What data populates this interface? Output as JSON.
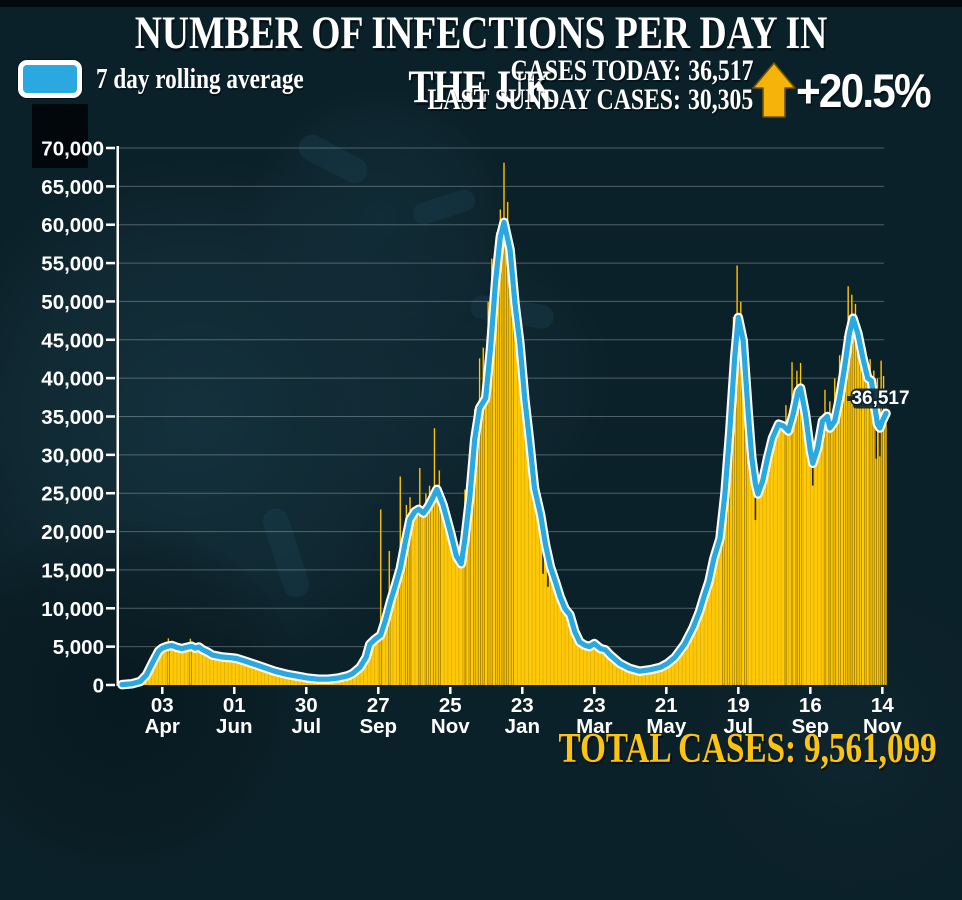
{
  "header": {
    "title": "NUMBER OF INFECTIONS PER DAY IN THE UK",
    "legend_label": "7 day rolling average",
    "stats": [
      {
        "label": "CASES TODAY:",
        "value": "36,517"
      },
      {
        "label": "LAST SUNDAY CASES:",
        "value": "30,305"
      }
    ],
    "change_badge": {
      "direction": "up",
      "value": "+20.5%",
      "arrow_icon": "up-arrow-icon"
    }
  },
  "footer": {
    "total_label": "TOTAL CASES:",
    "total_value": "9,561,099"
  },
  "colors": {
    "background": "#0b2129",
    "bar_yellow": "#ffc908",
    "line_blue": "#2aa9e0",
    "line_outline": "#ffffff",
    "gold_text": "#fcc40e",
    "axis_white": "#ffffff",
    "annotation_bg": "#0c232e"
  },
  "chart_data": {
    "type": "bar+line",
    "title": "NUMBER OF INFECTIONS PER DAY IN THE UK",
    "legend": "7 day rolling average",
    "grid": true,
    "ylim": [
      0,
      70000
    ],
    "y_axis": {
      "min": 0,
      "max": 70000,
      "step": 5000,
      "tick_labels": [
        "0",
        "5,000",
        "10,000",
        "15,000",
        "20,000",
        "25,000",
        "30,000",
        "35,000",
        "40,000",
        "45,000",
        "50,000",
        "55,000",
        "60,000",
        "65,000",
        "70,000"
      ]
    },
    "x_axis": {
      "unit": "day index (0 = start of series, ~1 Mar 2020)",
      "domain": [
        0,
        626
      ],
      "tick_days": [
        33,
        92,
        151,
        210,
        269,
        328,
        387,
        446,
        505,
        564,
        623
      ],
      "tick_labels": [
        [
          "03",
          "Apr"
        ],
        [
          "01",
          "Jun"
        ],
        [
          "30",
          "Jul"
        ],
        [
          "27",
          "Sep"
        ],
        [
          "25",
          "Nov"
        ],
        [
          "23",
          "Jan"
        ],
        [
          "23",
          "Mar"
        ],
        [
          "21",
          "May"
        ],
        [
          "19",
          "Jul"
        ],
        [
          "16",
          "Sep"
        ],
        [
          "14",
          "Nov"
        ]
      ]
    },
    "series": [
      {
        "name": "7 day rolling average",
        "type": "line",
        "color": "#2aa9e0",
        "points": [
          [
            0,
            50
          ],
          [
            8,
            150
          ],
          [
            15,
            450
          ],
          [
            20,
            1300
          ],
          [
            25,
            2900
          ],
          [
            30,
            4400
          ],
          [
            33,
            4800
          ],
          [
            37,
            5050
          ],
          [
            41,
            5150
          ],
          [
            45,
            4900
          ],
          [
            49,
            4750
          ],
          [
            53,
            4900
          ],
          [
            57,
            5050
          ],
          [
            60,
            4800
          ],
          [
            63,
            4950
          ],
          [
            66,
            4600
          ],
          [
            70,
            4300
          ],
          [
            74,
            3900
          ],
          [
            82,
            3650
          ],
          [
            90,
            3550
          ],
          [
            94,
            3450
          ],
          [
            103,
            3000
          ],
          [
            115,
            2350
          ],
          [
            125,
            1800
          ],
          [
            136,
            1350
          ],
          [
            147,
            1050
          ],
          [
            152,
            900
          ],
          [
            161,
            750
          ],
          [
            169,
            750
          ],
          [
            177,
            900
          ],
          [
            185,
            1200
          ],
          [
            189,
            1500
          ],
          [
            195,
            2300
          ],
          [
            200,
            3600
          ],
          [
            203,
            5300
          ],
          [
            207,
            5900
          ],
          [
            212,
            6500
          ],
          [
            216,
            8500
          ],
          [
            220,
            10900
          ],
          [
            224,
            13000
          ],
          [
            228,
            15200
          ],
          [
            232,
            18500
          ],
          [
            236,
            21600
          ],
          [
            240,
            22600
          ],
          [
            243,
            22900
          ],
          [
            247,
            22400
          ],
          [
            251,
            23300
          ],
          [
            254,
            24200
          ],
          [
            258,
            25500
          ],
          [
            263,
            23500
          ],
          [
            269,
            20000
          ],
          [
            274,
            16800
          ],
          [
            278,
            15800
          ],
          [
            281,
            19000
          ],
          [
            285,
            24500
          ],
          [
            289,
            32000
          ],
          [
            293,
            36100
          ],
          [
            298,
            37400
          ],
          [
            302,
            44000
          ],
          [
            306,
            52500
          ],
          [
            310,
            58400
          ],
          [
            313,
            60300
          ],
          [
            318,
            56700
          ],
          [
            322,
            49700
          ],
          [
            326,
            44500
          ],
          [
            330,
            37400
          ],
          [
            334,
            31800
          ],
          [
            338,
            25650
          ],
          [
            343,
            22200
          ],
          [
            347,
            18300
          ],
          [
            351,
            15400
          ],
          [
            355,
            13500
          ],
          [
            359,
            11500
          ],
          [
            363,
            9950
          ],
          [
            367,
            9150
          ],
          [
            371,
            6950
          ],
          [
            375,
            5600
          ],
          [
            379,
            5200
          ],
          [
            383,
            5000
          ],
          [
            387,
            5400
          ],
          [
            392,
            4750
          ],
          [
            396,
            4580
          ],
          [
            400,
            3900
          ],
          [
            408,
            2800
          ],
          [
            416,
            2150
          ],
          [
            424,
            1800
          ],
          [
            433,
            2000
          ],
          [
            441,
            2300
          ],
          [
            447,
            2800
          ],
          [
            453,
            3600
          ],
          [
            461,
            5300
          ],
          [
            468,
            7500
          ],
          [
            473,
            9500
          ],
          [
            477,
            11600
          ],
          [
            481,
            13500
          ],
          [
            485,
            16500
          ],
          [
            490,
            19100
          ],
          [
            494,
            24900
          ],
          [
            498,
            33100
          ],
          [
            502,
            42700
          ],
          [
            505,
            47900
          ],
          [
            509,
            44900
          ],
          [
            513,
            35700
          ],
          [
            516,
            29600
          ],
          [
            519,
            26200
          ],
          [
            521,
            24900
          ],
          [
            525,
            26600
          ],
          [
            529,
            29600
          ],
          [
            533,
            32200
          ],
          [
            538,
            34000
          ],
          [
            542,
            33750
          ],
          [
            546,
            33100
          ],
          [
            550,
            35300
          ],
          [
            554,
            38300
          ],
          [
            556,
            38700
          ],
          [
            560,
            35300
          ],
          [
            564,
            30500
          ],
          [
            566,
            28900
          ],
          [
            570,
            30900
          ],
          [
            574,
            34400
          ],
          [
            578,
            35000
          ],
          [
            580,
            33500
          ],
          [
            584,
            34400
          ],
          [
            588,
            37400
          ],
          [
            592,
            41350
          ],
          [
            596,
            45800
          ],
          [
            599,
            47800
          ],
          [
            603,
            45800
          ],
          [
            607,
            42650
          ],
          [
            611,
            40000
          ],
          [
            614,
            39650
          ],
          [
            617,
            36100
          ],
          [
            619,
            34000
          ],
          [
            621,
            33500
          ],
          [
            623,
            34400
          ],
          [
            626,
            35400
          ]
        ]
      },
      {
        "name": "daily cases",
        "type": "bar",
        "color": "#ffc908",
        "note": "bars track the rolling average; prominent single-day spikes read from image",
        "spikes": [
          [
            38,
            6100
          ],
          [
            56,
            6050
          ],
          [
            212,
            22900
          ],
          [
            219,
            17500
          ],
          [
            228,
            27200
          ],
          [
            233,
            23500
          ],
          [
            236,
            24500
          ],
          [
            244,
            28300
          ],
          [
            249,
            25000
          ],
          [
            252,
            26000
          ],
          [
            256,
            33500
          ],
          [
            260,
            28000
          ],
          [
            281,
            25500
          ],
          [
            285,
            30500
          ],
          [
            289,
            36000
          ],
          [
            293,
            42600
          ],
          [
            296,
            44000
          ],
          [
            300,
            50000
          ],
          [
            303,
            55600
          ],
          [
            307,
            59000
          ],
          [
            310,
            62000
          ],
          [
            313,
            68100
          ],
          [
            316,
            63000
          ],
          [
            320,
            55000
          ],
          [
            493,
            28000
          ],
          [
            497,
            36000
          ],
          [
            501,
            48000
          ],
          [
            504,
            54700
          ],
          [
            507,
            50000
          ],
          [
            511,
            43000
          ],
          [
            544,
            36500
          ],
          [
            549,
            42100
          ],
          [
            553,
            41000
          ],
          [
            556,
            42000
          ],
          [
            576,
            38500
          ],
          [
            580,
            37000
          ],
          [
            584,
            40000
          ],
          [
            588,
            43000
          ],
          [
            592,
            45500
          ],
          [
            595,
            52000
          ],
          [
            598,
            50900
          ],
          [
            601,
            49700
          ],
          [
            605,
            46500
          ],
          [
            609,
            44000
          ],
          [
            613,
            42500
          ],
          [
            616,
            41000
          ],
          [
            619,
            40000
          ],
          [
            622,
            42300
          ],
          [
            624,
            40300
          ],
          [
            626,
            36517
          ]
        ],
        "dips": [
          [
            345,
            14500
          ],
          [
            349,
            12800
          ],
          [
            519,
            21500
          ],
          [
            566,
            26000
          ],
          [
            618,
            29500
          ],
          [
            621,
            29800
          ]
        ]
      }
    ],
    "annotation": {
      "day": 626,
      "value": 36517,
      "label": "36,517"
    }
  }
}
